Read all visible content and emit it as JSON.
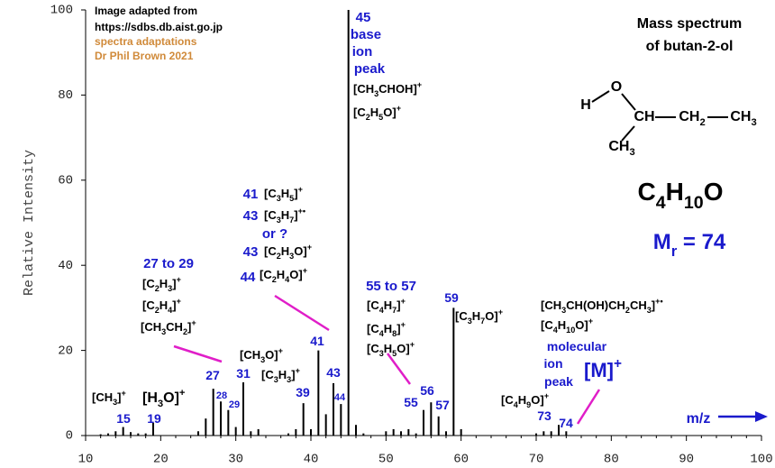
{
  "chart_data": {
    "type": "bar",
    "y_label": "Relative Intensity",
    "x": [
      12,
      13,
      14,
      15,
      16,
      17,
      18,
      19,
      25,
      26,
      27,
      28,
      29,
      30,
      31,
      32,
      33,
      37,
      38,
      39,
      40,
      41,
      42,
      43,
      44,
      45,
      46,
      47,
      50,
      51,
      52,
      53,
      54,
      55,
      56,
      57,
      58,
      59,
      60,
      70,
      71,
      72,
      73,
      74
    ],
    "values": [
      0.3,
      0.5,
      1,
      2,
      0.8,
      0.5,
      0.5,
      3,
      1,
      4,
      11,
      8,
      6,
      2,
      12.5,
      1,
      1.5,
      0.5,
      1.5,
      7.6,
      1.5,
      20,
      5,
      12.3,
      7.4,
      100,
      2.5,
      0.5,
      1,
      1.5,
      1,
      1.5,
      0.5,
      6,
      7.8,
      4.5,
      1,
      30,
      1.5,
      0.5,
      1,
      1,
      2.5,
      1
    ],
    "color": "#000000",
    "xlim": [
      10,
      100
    ],
    "xticks": [
      10,
      20,
      30,
      40,
      50,
      60,
      70,
      80,
      90,
      100
    ],
    "ylim": [
      0,
      100
    ],
    "yticks": [
      0,
      20,
      40,
      60,
      80,
      100
    ],
    "annotations": [
      {
        "text": "Image adapted from",
        "color": "#000000"
      },
      {
        "text": "https://sdbs.db.aist.go.jp",
        "color": "#000000"
      },
      {
        "text": "spectra adaptations",
        "color": "#d08a3a"
      },
      {
        "text": "Dr Phil Brown 2021",
        "color": "#d08a3a"
      },
      {
        "text": "Mass spectrum",
        "color": "#000000"
      },
      {
        "text": "of  butan-2-ol",
        "color": "#000000"
      },
      {
        "text": "C4H10O",
        "color": "#000000"
      },
      {
        "text": "Mr = 74",
        "color": "#1a1acc"
      },
      {
        "text": "45",
        "color": "#1a1acc"
      },
      {
        "text": "base",
        "color": "#1a1acc"
      },
      {
        "text": "ion",
        "color": "#1a1acc"
      },
      {
        "text": "peak",
        "color": "#1a1acc"
      },
      {
        "text": "[CH3CHOH]+",
        "color": "#000000"
      },
      {
        "text": "[C2H5O]+",
        "color": "#000000"
      },
      {
        "text": "41",
        "color": "#1a1acc"
      },
      {
        "text": "[C3H5]+",
        "color": "#000000"
      },
      {
        "text": "43",
        "color": "#1a1acc"
      },
      {
        "text": "[C3H7]+•",
        "color": "#000000"
      },
      {
        "text": "or  ?",
        "color": "#1a1acc"
      },
      {
        "text": "43",
        "color": "#1a1acc"
      },
      {
        "text": "[C2H3O]+",
        "color": "#000000"
      },
      {
        "text": "44",
        "color": "#1a1acc"
      },
      {
        "text": "[C2H4O]+",
        "color": "#000000"
      },
      {
        "text": "27 to 29",
        "color": "#1a1acc"
      },
      {
        "text": "[C2H3]+",
        "color": "#000000"
      },
      {
        "text": "[C2H4]+",
        "color": "#000000"
      },
      {
        "text": "[CH3CH2]+",
        "color": "#000000"
      },
      {
        "text": "[CH3]+",
        "color": "#000000"
      },
      {
        "text": "[H3O]+",
        "color": "#000000"
      },
      {
        "text": "15",
        "color": "#1a1acc"
      },
      {
        "text": "19",
        "color": "#1a1acc"
      },
      {
        "text": "27",
        "color": "#1a1acc"
      },
      {
        "text": "28",
        "color": "#1a1acc"
      },
      {
        "text": "29",
        "color": "#1a1acc"
      },
      {
        "text": "31",
        "color": "#1a1acc"
      },
      {
        "text": "39",
        "color": "#1a1acc"
      },
      {
        "text": "41",
        "color": "#1a1acc"
      },
      {
        "text": "43",
        "color": "#1a1acc"
      },
      {
        "text": "44",
        "color": "#1a1acc"
      },
      {
        "text": "55",
        "color": "#1a1acc"
      },
      {
        "text": "56",
        "color": "#1a1acc"
      },
      {
        "text": "57",
        "color": "#1a1acc"
      },
      {
        "text": "59",
        "color": "#1a1acc"
      },
      {
        "text": "73",
        "color": "#1a1acc"
      },
      {
        "text": "74",
        "color": "#1a1acc"
      },
      {
        "text": "[CH3O]+",
        "color": "#000000"
      },
      {
        "text": "[C3H3]+",
        "color": "#000000"
      },
      {
        "text": "55 to 57",
        "color": "#1a1acc"
      },
      {
        "text": "[C4H7]+",
        "color": "#000000"
      },
      {
        "text": "[C4H8]+",
        "color": "#000000"
      },
      {
        "text": "[C3H5O]+",
        "color": "#000000"
      },
      {
        "text": "[C3H7O]+",
        "color": "#000000"
      },
      {
        "text": "[CH3CH(OH)CH2CH3]+•",
        "color": "#000000"
      },
      {
        "text": "[C4H10O]+",
        "color": "#000000"
      },
      {
        "text": "molecular",
        "color": "#1a1acc"
      },
      {
        "text": "ion",
        "color": "#1a1acc"
      },
      {
        "text": "peak",
        "color": "#1a1acc"
      },
      {
        "text": "[M]+",
        "color": "#1a1acc"
      },
      {
        "text": "[C4H9O]+",
        "color": "#000000"
      },
      {
        "text": "m/z",
        "color": "#1a1acc"
      },
      {
        "text": "H",
        "color": "#000000"
      },
      {
        "text": "O",
        "color": "#000000"
      },
      {
        "text": "CH",
        "color": "#000000"
      },
      {
        "text": "CH2",
        "color": "#000000"
      },
      {
        "text": "CH3",
        "color": "#000000"
      },
      {
        "text": "CH3",
        "color": "#000000"
      }
    ]
  }
}
